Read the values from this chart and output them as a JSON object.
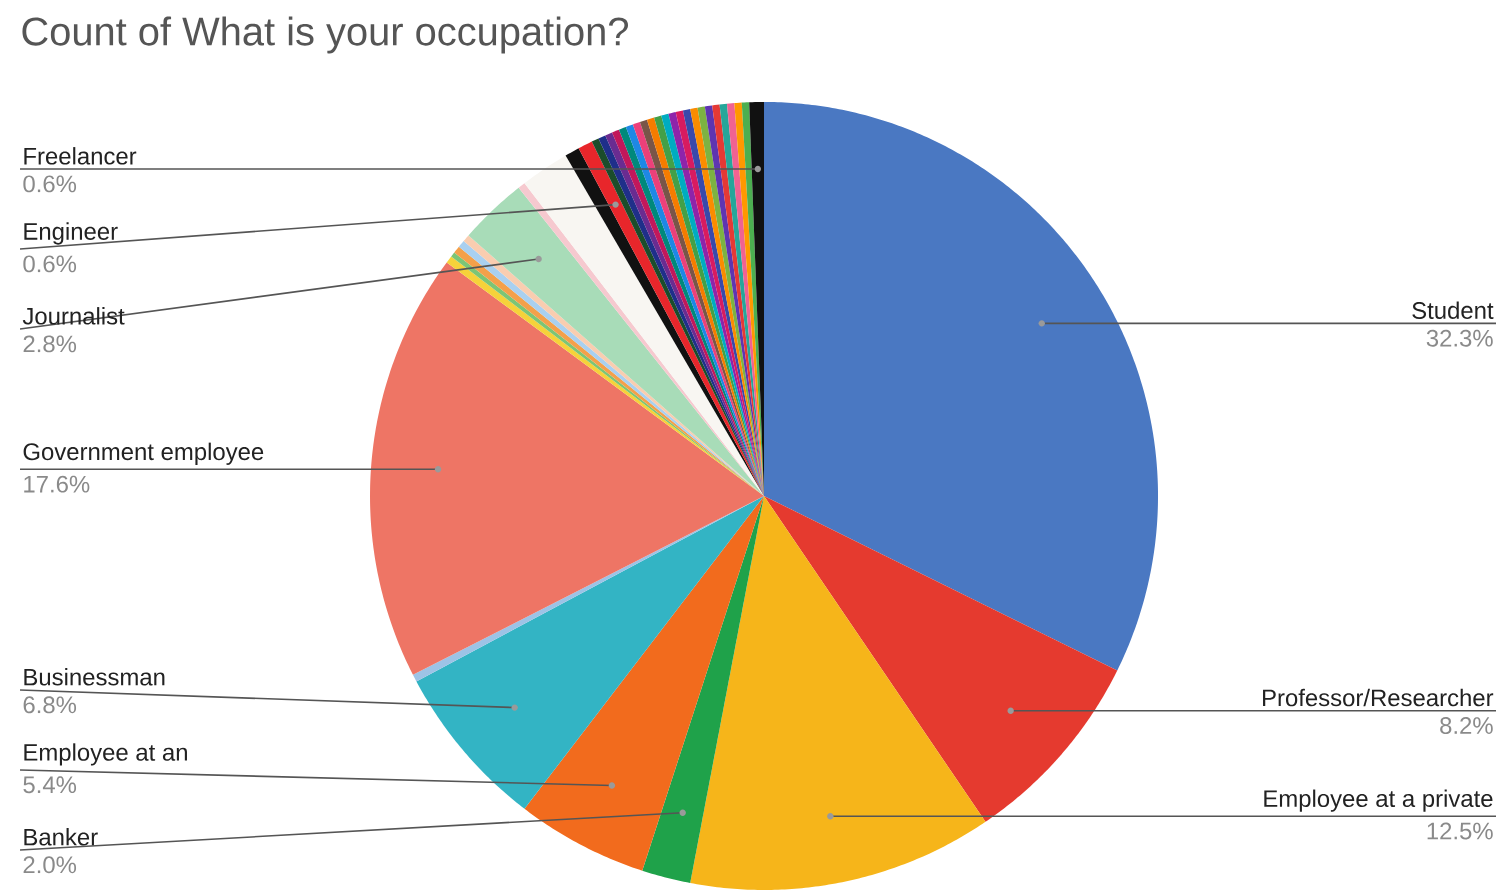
{
  "chart_data": {
    "type": "pie",
    "title": "Count of What is your occupation?",
    "categories": [
      "Student",
      "Professor/Researcher",
      "Employee at a private",
      "Banker",
      "Employee at an",
      "Businessman",
      null,
      "Government employee",
      null,
      null,
      null,
      null,
      null,
      "Journalist",
      null,
      null,
      null,
      "Engineer",
      null,
      null,
      null,
      null,
      null,
      null,
      null,
      null,
      null,
      null,
      null,
      null,
      null,
      null,
      null,
      null,
      null,
      null,
      null,
      null,
      null,
      null,
      "Freelancer"
    ],
    "values": [
      32.3,
      8.2,
      12.5,
      2.0,
      5.4,
      6.8,
      0.3,
      17.6,
      0.3,
      0.2,
      0.3,
      0.3,
      0.3,
      2.8,
      0.3,
      2.0,
      0.6,
      0.6,
      0.3,
      0.3,
      0.3,
      0.3,
      0.3,
      0.3,
      0.3,
      0.3,
      0.3,
      0.3,
      0.3,
      0.3,
      0.3,
      0.3,
      0.3,
      0.3,
      0.3,
      0.3,
      0.3,
      0.3,
      0.3,
      0.3,
      0.6
    ],
    "colors": [
      "#4a78c2",
      "#e53a2f",
      "#f6b51a",
      "#1fa24a",
      "#f26b1d",
      "#33b4c4",
      "#9dc3e6",
      "#ee7565",
      "#f6d23a",
      "#7cc576",
      "#f4a04a",
      "#a9d0f0",
      "#f9cdb0",
      "#a8dcb8",
      "#f6c9cf",
      "#f8f6f2",
      "#111111",
      "#e8262b",
      "#1b4d2b",
      "#1f2f8a",
      "#6a2c91",
      "#c2185b",
      "#00897b",
      "#1e88e5",
      "#ec407a",
      "#795548",
      "#f57c00",
      "#43a047",
      "#00acc1",
      "#8e24aa",
      "#d81b60",
      "#3949ab",
      "#fb8c00",
      "#7cb342",
      "#5e35b1",
      "#e53935",
      "#26a69a",
      "#f06292",
      "#ff9800",
      "#4caf50",
      "#111111"
    ],
    "value_labels": [
      "32.3%",
      "8.2%",
      "12.5%",
      "2.0%",
      "5.4%",
      "6.8%",
      null,
      "17.6%",
      null,
      null,
      null,
      null,
      null,
      "2.8%",
      null,
      null,
      null,
      "0.6%",
      null,
      null,
      null,
      null,
      null,
      null,
      null,
      null,
      null,
      null,
      null,
      null,
      null,
      null,
      null,
      null,
      null,
      null,
      null,
      null,
      null,
      null,
      "0.6%"
    ]
  }
}
